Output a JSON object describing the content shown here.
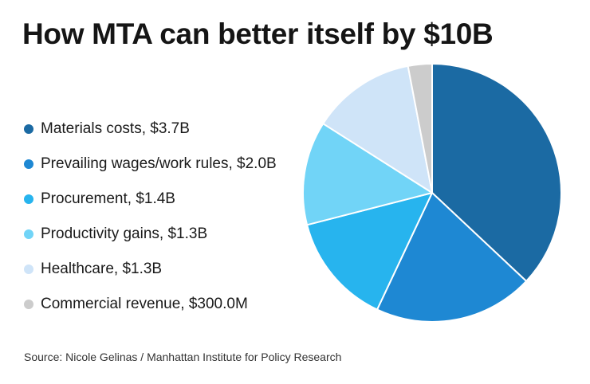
{
  "chart_data": {
    "type": "pie",
    "title": "How MTA can better itself by $10B",
    "unit": "$B",
    "legend_position": "left",
    "slices": [
      {
        "label": "Materials costs, $3.7B",
        "value": 3.7,
        "color": "#1b6aa3"
      },
      {
        "label": "Prevailing wages/work rules, $2.0B",
        "value": 2.0,
        "color": "#1e88d3"
      },
      {
        "label": "Procurement, $1.4B",
        "value": 1.4,
        "color": "#27b4ee"
      },
      {
        "label": "Productivity gains, $1.3B",
        "value": 1.3,
        "color": "#71d4f7"
      },
      {
        "label": "Healthcare, $1.3B",
        "value": 1.3,
        "color": "#cfe4f8"
      },
      {
        "label": "Commercial revenue, $300.0M",
        "value": 0.3,
        "color": "#cccccc"
      }
    ]
  },
  "source": "Source: Nicole Gelinas / Manhattan Institute for Policy Research"
}
